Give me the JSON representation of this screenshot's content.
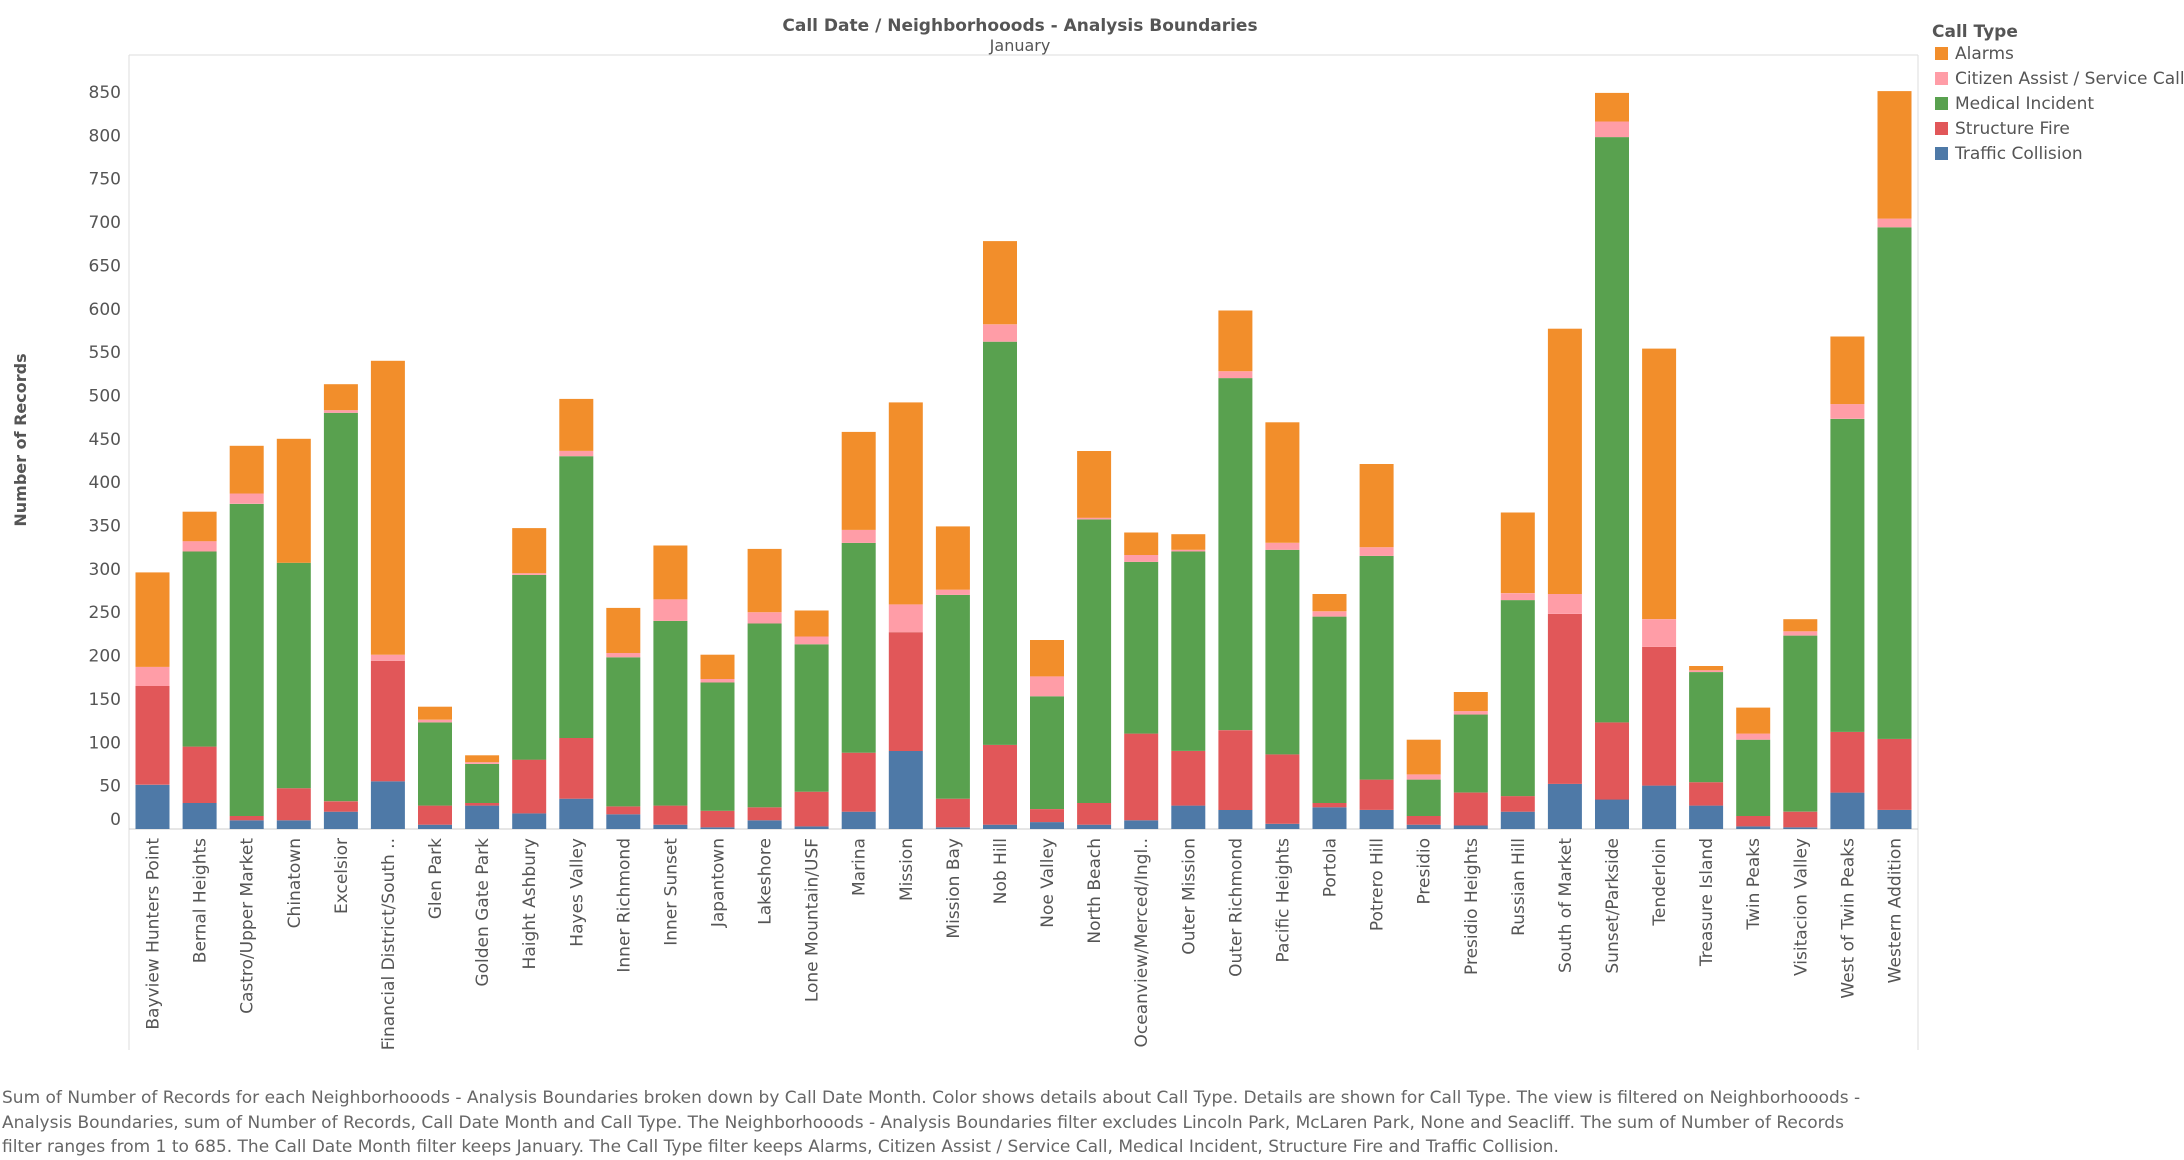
{
  "chart_data": {
    "type": "bar",
    "stacked": true,
    "title": "Call Date / Neighborhooods - Analysis Boundaries",
    "column_header": "January",
    "ylabel": "Number of Records",
    "ylim": [
      0,
      850
    ],
    "yticks": [
      0,
      50,
      100,
      150,
      200,
      250,
      300,
      350,
      400,
      450,
      500,
      550,
      600,
      650,
      700,
      750,
      800,
      850
    ],
    "grid": false,
    "legend_position": "top-right",
    "legend_title": "Call Type",
    "categories": [
      "Bayview Hunters Point",
      "Bernal Heights",
      "Castro/Upper Market",
      "Chinatown",
      "Excelsior",
      "Financial District/South ..",
      "Glen Park",
      "Golden Gate Park",
      "Haight Ashbury",
      "Hayes Valley",
      "Inner Richmond",
      "Inner Sunset",
      "Japantown",
      "Lakeshore",
      "Lone Mountain/USF",
      "Marina",
      "Mission",
      "Mission Bay",
      "Nob Hill",
      "Noe Valley",
      "North Beach",
      "Oceanview/Merced/Ingl..",
      "Outer Mission",
      "Outer Richmond",
      "Pacific Heights",
      "Portola",
      "Potrero Hill",
      "Presidio",
      "Presidio Heights",
      "Russian Hill",
      "South of Market",
      "Sunset/Parkside",
      "Tenderloin",
      "Treasure Island",
      "Twin Peaks",
      "Visitacion Valley",
      "West of Twin Peaks",
      "Western Addition"
    ],
    "series": [
      {
        "name": "Traffic Collision",
        "color": "#4e79a7",
        "values": [
          51,
          30,
          10,
          10,
          20,
          55,
          5,
          27,
          18,
          35,
          17,
          5,
          2,
          10,
          3,
          20,
          90,
          2,
          5,
          8,
          5,
          10,
          27,
          22,
          6,
          25,
          22,
          5,
          4,
          20,
          52,
          34,
          50,
          27,
          3,
          2,
          42,
          22
        ]
      },
      {
        "name": "Structure Fire",
        "color": "#e15759",
        "values": [
          114,
          65,
          5,
          37,
          12,
          139,
          22,
          3,
          62,
          70,
          9,
          22,
          19,
          15,
          40,
          68,
          137,
          33,
          92,
          15,
          25,
          100,
          63,
          92,
          80,
          5,
          35,
          10,
          38,
          18,
          196,
          89,
          160,
          27,
          12,
          18,
          70,
          82
        ]
      },
      {
        "name": "Medical Incident",
        "color": "#59a14f",
        "values": [
          0,
          225,
          360,
          260,
          448,
          0,
          96,
          45,
          213,
          325,
          172,
          213,
          148,
          212,
          170,
          242,
          0,
          235,
          465,
          130,
          327,
          198,
          230,
          406,
          236,
          215,
          258,
          42,
          90,
          226,
          0,
          675,
          0,
          127,
          88,
          203,
          361,
          590
        ]
      },
      {
        "name": "Citizen Assist / Service Call",
        "color": "#ff9da7",
        "values": [
          22,
          12,
          12,
          0,
          3,
          7,
          3,
          2,
          2,
          6,
          5,
          25,
          4,
          13,
          9,
          15,
          32,
          6,
          20,
          23,
          2,
          8,
          2,
          8,
          8,
          6,
          10,
          6,
          4,
          8,
          23,
          18,
          32,
          2,
          7,
          5,
          17,
          10
        ]
      },
      {
        "name": "Alarms",
        "color": "#f28e2b",
        "values": [
          109,
          34,
          55,
          143,
          30,
          339,
          15,
          8,
          52,
          60,
          52,
          62,
          28,
          73,
          30,
          113,
          233,
          73,
          96,
          42,
          77,
          26,
          18,
          70,
          139,
          20,
          96,
          40,
          22,
          93,
          306,
          33,
          312,
          5,
          30,
          14,
          78,
          147
        ]
      }
    ]
  },
  "caption": "Sum of Number of Records for each Neighborhooods - Analysis Boundaries broken down by Call Date Month.  Color shows details about Call Type.  Details are shown for Call Type. The view is filtered on Neighborhooods - Analysis Boundaries, sum of Number of Records, Call Date Month and Call Type. The Neighborhooods - Analysis Boundaries filter excludes Lincoln Park, McLaren Park, None and Seacliff. The sum of Number of Records filter ranges from 1 to 685. The Call Date Month filter keeps January. The Call Type filter keeps Alarms, Citizen Assist / Service Call, Medical Incident, Structure Fire and Traffic Collision."
}
